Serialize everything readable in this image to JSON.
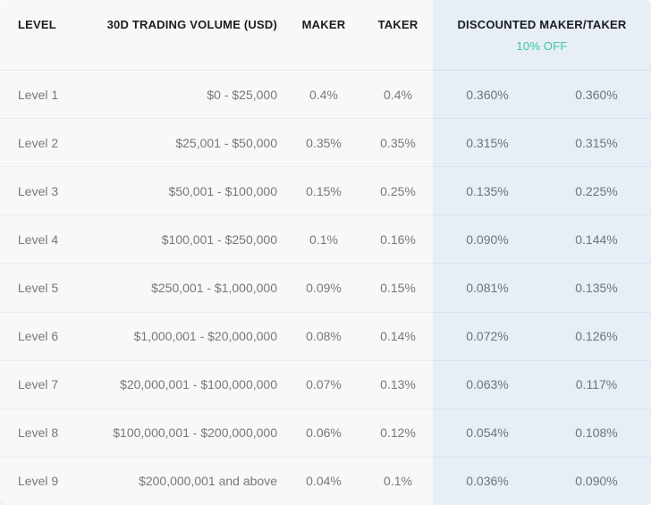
{
  "colors": {
    "left_panel_bg": "#f8f8f9",
    "discount_panel_bg": "#e7eef6",
    "accent_green": "#38c99c",
    "header_text": "#1a1d21",
    "row_text": "#75787d"
  },
  "table": {
    "headers": {
      "level": "LEVEL",
      "volume": "30D TRADING VOLUME (USD)",
      "maker": "MAKER",
      "taker": "TAKER",
      "discounted": "DISCOUNTED MAKER/TAKER",
      "discount_badge": "10% OFF"
    },
    "rows": [
      {
        "level": "Level 1",
        "volume": "$0 - $25,000",
        "maker": "0.4%",
        "taker": "0.4%",
        "disc_maker": "0.360%",
        "disc_taker": "0.360%"
      },
      {
        "level": "Level 2",
        "volume": "$25,001 - $50,000",
        "maker": "0.35%",
        "taker": "0.35%",
        "disc_maker": "0.315%",
        "disc_taker": "0.315%"
      },
      {
        "level": "Level 3",
        "volume": "$50,001 - $100,000",
        "maker": "0.15%",
        "taker": "0.25%",
        "disc_maker": "0.135%",
        "disc_taker": "0.225%"
      },
      {
        "level": "Level 4",
        "volume": "$100,001 - $250,000",
        "maker": "0.1%",
        "taker": "0.16%",
        "disc_maker": "0.090%",
        "disc_taker": "0.144%"
      },
      {
        "level": "Level 5",
        "volume": "$250,001 - $1,000,000",
        "maker": "0.09%",
        "taker": "0.15%",
        "disc_maker": "0.081%",
        "disc_taker": "0.135%"
      },
      {
        "level": "Level 6",
        "volume": "$1,000,001 - $20,000,000",
        "maker": "0.08%",
        "taker": "0.14%",
        "disc_maker": "0.072%",
        "disc_taker": "0.126%"
      },
      {
        "level": "Level 7",
        "volume": "$20,000,001 - $100,000,000",
        "maker": "0.07%",
        "taker": "0.13%",
        "disc_maker": "0.063%",
        "disc_taker": "0.117%"
      },
      {
        "level": "Level 8",
        "volume": "$100,000,001 - $200,000,000",
        "maker": "0.06%",
        "taker": "0.12%",
        "disc_maker": "0.054%",
        "disc_taker": "0.108%"
      },
      {
        "level": "Level 9",
        "volume": "$200,000,001 and above",
        "maker": "0.04%",
        "taker": "0.1%",
        "disc_maker": "0.036%",
        "disc_taker": "0.090%"
      }
    ]
  }
}
